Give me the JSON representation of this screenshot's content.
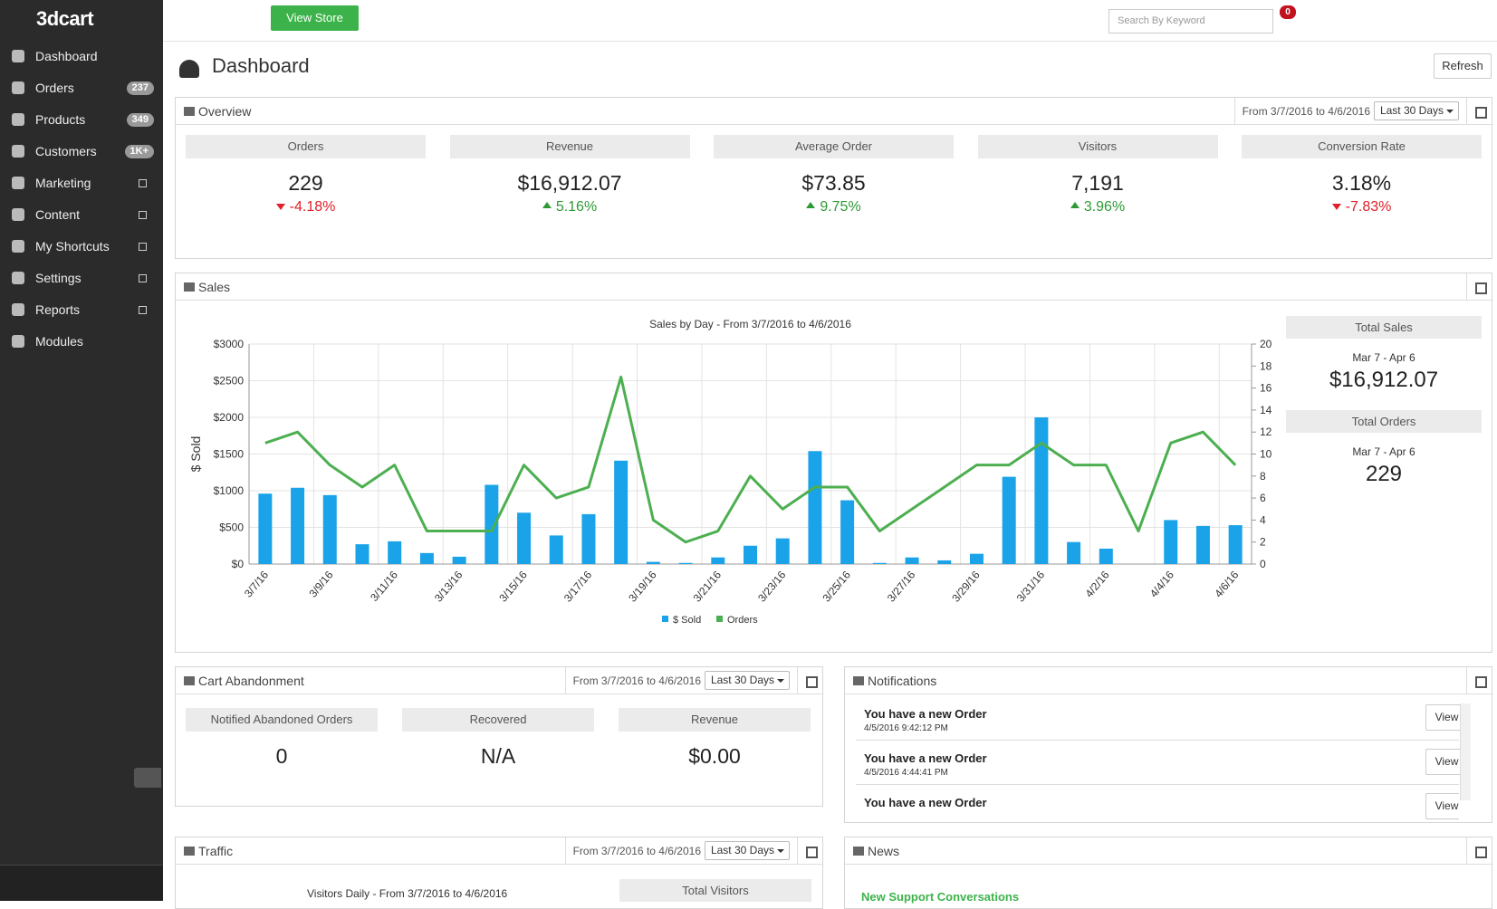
{
  "brand": "3dcart",
  "nav": [
    {
      "label": "Dashboard"
    },
    {
      "label": "Orders",
      "badge": "237"
    },
    {
      "label": "Products",
      "badge": "349"
    },
    {
      "label": "Customers",
      "badge": "1K+"
    },
    {
      "label": "Marketing"
    },
    {
      "label": "Content"
    },
    {
      "label": "My Shortcuts"
    },
    {
      "label": "Settings"
    },
    {
      "label": "Reports"
    },
    {
      "label": "Modules"
    }
  ],
  "header": {
    "view_store": "View Store",
    "search_placeholder": "Search By Keyword",
    "notification_count": "0"
  },
  "page": {
    "title": "Dashboard",
    "refresh": "Refresh"
  },
  "overview": {
    "title": "Overview",
    "range": "From 3/7/2016 to 4/6/2016",
    "period": "Last 30 Days",
    "stats": [
      {
        "label": "Orders",
        "value": "229",
        "change": "-4.18%"
      },
      {
        "label": "Revenue",
        "value": "$16,912.07",
        "change": "5.16%"
      },
      {
        "label": "Average Order",
        "value": "$73.85",
        "change": "9.75%"
      },
      {
        "label": "Visitors",
        "value": "7,191",
        "change": "3.96%"
      },
      {
        "label": "Conversion Rate",
        "value": "3.18%",
        "change": "-7.83%"
      }
    ]
  },
  "sales": {
    "title": "Sales",
    "chart_data": {
      "type": "bar",
      "title": "Sales by Day - From 3/7/2016 to 4/6/2016",
      "y_label": "$ Sold",
      "y2_label": "Orders",
      "categories": [
        "3/7/16",
        null,
        "3/9/16",
        null,
        "3/11/16",
        null,
        "3/13/16",
        null,
        "3/15/16",
        null,
        "3/17/16",
        null,
        "3/19/16",
        null,
        "3/21/16",
        null,
        "3/23/16",
        null,
        "3/25/16",
        null,
        "3/27/16",
        null,
        "3/29/16",
        null,
        "3/31/16",
        null,
        "4/2/16",
        null,
        "4/4/16",
        null,
        "4/6/16"
      ],
      "series": [
        {
          "name": "$ Sold",
          "type": "bar",
          "color": "#1aa3e8",
          "values": [
            960,
            1040,
            940,
            270,
            310,
            150,
            100,
            1080,
            700,
            390,
            680,
            1410,
            30,
            15,
            90,
            250,
            350,
            1540,
            870,
            15,
            90,
            50,
            140,
            1190,
            2000,
            300,
            210,
            0,
            600,
            520,
            530
          ]
        },
        {
          "name": "Orders",
          "type": "line",
          "axis": "y2",
          "color": "#4caf50",
          "values": [
            11,
            12,
            9,
            7,
            9,
            3,
            3,
            3,
            9,
            6,
            7,
            17,
            4,
            2,
            3,
            8,
            5,
            7,
            7,
            3,
            5,
            7,
            9,
            9,
            11,
            9,
            9,
            3,
            11,
            12,
            9
          ]
        }
      ],
      "ylim": [
        0,
        3000
      ],
      "yticks": [
        {
          "value": 0,
          "label": "$0"
        },
        {
          "value": 500,
          "label": "$500"
        },
        {
          "value": 1000,
          "label": "$1000"
        },
        {
          "value": 1500,
          "label": "$1500"
        },
        {
          "value": 2000,
          "label": "$2000"
        },
        {
          "value": 2500,
          "label": "$2500"
        },
        {
          "value": 3000,
          "label": "$3000"
        }
      ],
      "y2lim": [
        0,
        20
      ],
      "y2ticks": [
        0,
        2,
        4,
        6,
        8,
        10,
        12,
        14,
        16,
        18,
        20
      ],
      "grid": true
    },
    "summary": [
      {
        "label": "Total Sales",
        "period": "Mar 7 - Apr 6",
        "value": "$16,912.07"
      },
      {
        "label": "Total Orders",
        "period": "Mar 7 - Apr 6",
        "value": "229"
      }
    ]
  },
  "cart_abandonment": {
    "title": "Cart Abandonment",
    "range": "From 3/7/2016 to 4/6/2016",
    "period": "Last 30 Days",
    "stats": [
      {
        "label": "Notified Abandoned Orders",
        "value": "0"
      },
      {
        "label": "Recovered",
        "value": "N/A"
      },
      {
        "label": "Revenue",
        "value": "$0.00"
      }
    ]
  },
  "notifications": {
    "title": "Notifications",
    "items": [
      {
        "title": "You have a new Order",
        "time": "4/5/2016 9:42:12 PM",
        "action": "View"
      },
      {
        "title": "You have a new Order",
        "time": "4/5/2016 4:44:41 PM",
        "action": "View"
      },
      {
        "title": "You have a new Order",
        "action": "View"
      }
    ]
  },
  "traffic": {
    "title": "Traffic",
    "range": "From 3/7/2016 to 4/6/2016",
    "period": "Last 30 Days",
    "chart_title": "Visitors Daily - From 3/7/2016 to 4/6/2016",
    "summary_label": "Total Visitors"
  },
  "news": {
    "title": "News",
    "items": [
      "New Support Conversations"
    ]
  }
}
